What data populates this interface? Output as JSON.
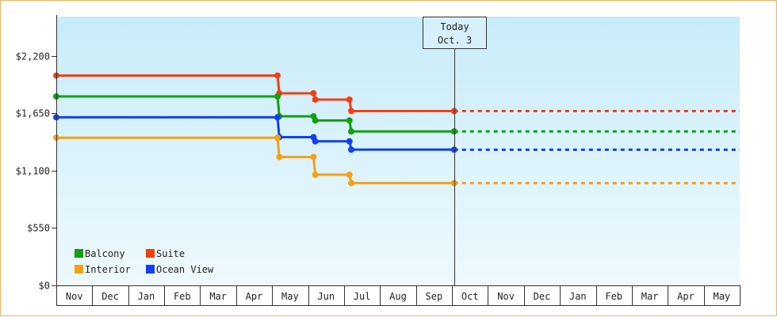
{
  "chart_data": {
    "type": "line",
    "step": true,
    "y_tick_labels": [
      "$0",
      "$550",
      "$1,100",
      "$1,650",
      "$2,200"
    ],
    "y_ticks": [
      0,
      550,
      1100,
      1650,
      2200
    ],
    "ylim": [
      0,
      2575
    ],
    "x_months": [
      "Nov",
      "Dec",
      "Jan",
      "Feb",
      "Mar",
      "Apr",
      "May",
      "Jun",
      "Jul",
      "Aug",
      "Sep",
      "Oct",
      "Nov",
      "Dec",
      "Jan",
      "Feb",
      "Mar",
      "Apr",
      "May"
    ],
    "x_range": [
      "2024-11-01",
      "2025-05-31"
    ],
    "today": {
      "line1": "Today",
      "line2": "Oct. 3",
      "date": "2024-10-03",
      "x_month": 11.06
    },
    "grid": false,
    "legend_position": "bottom-left",
    "colors": {
      "background_top": "#c8ecfa",
      "background_bottom": "#eef9fd",
      "axis": "#333333"
    },
    "series": [
      {
        "name": "Suite",
        "color": "#f04010",
        "points": [
          [
            0,
            2010
          ],
          [
            6.15,
            2010
          ],
          [
            6.2,
            1840
          ],
          [
            7.15,
            1840
          ],
          [
            7.2,
            1780
          ],
          [
            8.15,
            1780
          ],
          [
            8.2,
            1670
          ],
          [
            11.06,
            1670
          ]
        ],
        "projection": [
          [
            11.06,
            1670
          ],
          [
            19,
            1670
          ]
        ]
      },
      {
        "name": "Balcony",
        "color": "#10a010",
        "points": [
          [
            0,
            1810
          ],
          [
            6.15,
            1810
          ],
          [
            6.2,
            1620
          ],
          [
            7.15,
            1620
          ],
          [
            7.2,
            1580
          ],
          [
            8.15,
            1580
          ],
          [
            8.2,
            1475
          ],
          [
            11.06,
            1475
          ]
        ],
        "projection": [
          [
            11.06,
            1475
          ],
          [
            19,
            1475
          ]
        ]
      },
      {
        "name": "Ocean View",
        "color": "#1040f0",
        "points": [
          [
            0,
            1610
          ],
          [
            6.15,
            1610
          ],
          [
            6.2,
            1420
          ],
          [
            7.15,
            1420
          ],
          [
            7.2,
            1380
          ],
          [
            8.15,
            1380
          ],
          [
            8.2,
            1300
          ],
          [
            11.06,
            1300
          ]
        ],
        "projection": [
          [
            11.06,
            1300
          ],
          [
            19,
            1300
          ]
        ]
      },
      {
        "name": "Interior",
        "color": "#f5a010",
        "points": [
          [
            0,
            1415
          ],
          [
            6.15,
            1415
          ],
          [
            6.2,
            1230
          ],
          [
            7.15,
            1230
          ],
          [
            7.2,
            1060
          ],
          [
            8.15,
            1060
          ],
          [
            8.2,
            980
          ],
          [
            11.06,
            980
          ]
        ],
        "projection": [
          [
            11.06,
            980
          ],
          [
            19,
            980
          ]
        ]
      }
    ],
    "legend": [
      {
        "name": "Balcony",
        "color": "#10a010"
      },
      {
        "name": "Suite",
        "color": "#f04010"
      },
      {
        "name": "Interior",
        "color": "#f5a010"
      },
      {
        "name": "Ocean View",
        "color": "#1040f0"
      }
    ]
  }
}
